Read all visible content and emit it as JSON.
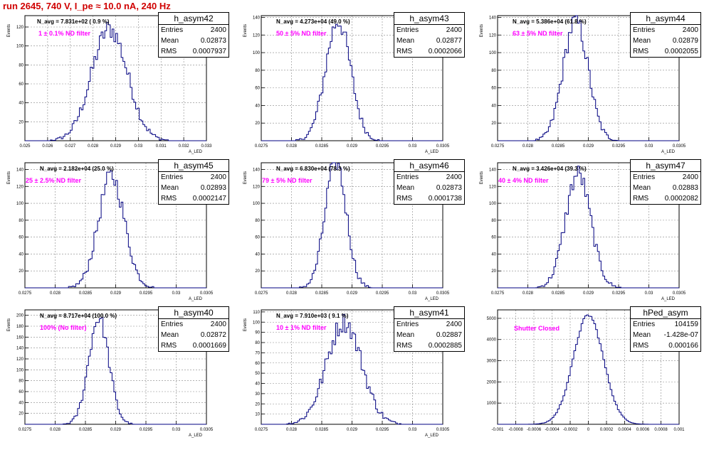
{
  "title": "run 2645,   740 V, I_pe ≈ 10.0 nA, 240 Hz",
  "colors": {
    "title": "#d00000",
    "hist_line": "#000080",
    "annotation": "#ff00ff",
    "grid": "#888888"
  },
  "stats_labels": {
    "entries": "Entries",
    "mean": "Mean",
    "rms": "RMS"
  },
  "chart_data": [
    {
      "type": "bar",
      "name": "h_asym42",
      "ylabel": "Events",
      "xlabel": "A_LED",
      "n_avg_text": "N_avg = 7.831e+02 ( 0.9 %)",
      "filter_text": "1 ± 0.1% ND filter",
      "stats": {
        "entries": "2400",
        "mean": "0.02873",
        "rms": "0.0007937"
      },
      "xlim": [
        0.025,
        0.033
      ],
      "ylim": [
        0,
        132
      ],
      "xticks": [
        "0.025",
        "0.026",
        "0.027",
        "0.028",
        "0.029",
        "0.03",
        "0.031",
        "0.032",
        "0.033"
      ],
      "xtick_values": [
        0.025,
        0.026,
        0.027,
        0.028,
        0.029,
        0.03,
        0.031,
        0.032,
        0.033
      ],
      "yticks": [
        20,
        40,
        60,
        80,
        100,
        120
      ],
      "mean": 0.02873,
      "sigma": 0.00079,
      "peak": 118
    },
    {
      "type": "bar",
      "name": "h_asym43",
      "ylabel": "Events",
      "xlabel": "A_LED",
      "n_avg_text": "N_avg = 4.273e+04 (49.0 %)",
      "filter_text": "50 ± 5% ND filter",
      "stats": {
        "entries": "2400",
        "mean": "0.02877",
        "rms": "0.0002066"
      },
      "xlim": [
        0.0275,
        0.0305
      ],
      "ylim": [
        0,
        142
      ],
      "xticks": [
        "0.0275",
        "0.028",
        "0.0285",
        "0.029",
        "0.0295",
        "0.03",
        "0.0305"
      ],
      "xtick_values": [
        0.0275,
        0.028,
        0.0285,
        0.029,
        0.0295,
        0.03,
        0.0305
      ],
      "yticks": [
        20,
        40,
        60,
        80,
        100,
        120,
        140
      ],
      "mean": 0.02877,
      "sigma": 0.000207,
      "peak": 136
    },
    {
      "type": "bar",
      "name": "h_asym44",
      "ylabel": "Events",
      "xlabel": "A_LED",
      "n_avg_text": "N_avg = 5.386e+04 (61.8 %)",
      "filter_text": "63 ± 5% ND filter",
      "stats": {
        "entries": "2400",
        "mean": "0.02879",
        "rms": "0.0002055"
      },
      "xlim": [
        0.0275,
        0.0305
      ],
      "ylim": [
        0,
        142
      ],
      "xticks": [
        "0.0275",
        "0.028",
        "0.0285",
        "0.029",
        "0.0295",
        "0.03",
        "0.0305"
      ],
      "xtick_values": [
        0.0275,
        0.028,
        0.0285,
        0.029,
        0.0295,
        0.03,
        0.0305
      ],
      "yticks": [
        20,
        40,
        60,
        80,
        100,
        120,
        140
      ],
      "mean": 0.02879,
      "sigma": 0.000206,
      "peak": 136
    },
    {
      "type": "bar",
      "name": "h_asym45",
      "ylabel": "Events",
      "xlabel": "A_LED",
      "n_avg_text": "N_avg = 2.182e+04 (25.0 %)",
      "filter_text": "25 ± 2.5% ND filter",
      "stats": {
        "entries": "2400",
        "mean": "0.02893",
        "rms": "0.0002147"
      },
      "xlim": [
        0.0275,
        0.0305
      ],
      "ylim": [
        0,
        148
      ],
      "xticks": [
        "0.0275",
        "0.028",
        "0.0285",
        "0.029",
        "0.0295",
        "0.03",
        "0.0305"
      ],
      "xtick_values": [
        0.0275,
        0.028,
        0.0285,
        0.029,
        0.0295,
        0.03,
        0.0305
      ],
      "yticks": [
        20,
        40,
        60,
        80,
        100,
        120,
        140
      ],
      "mean": 0.02893,
      "sigma": 0.000215,
      "peak": 132
    },
    {
      "type": "bar",
      "name": "h_asym46",
      "ylabel": "Events",
      "xlabel": "A_LED",
      "n_avg_text": "N_avg = 6.830e+04 (78.3 %)",
      "filter_text": "79 ± 5% ND filter",
      "stats": {
        "entries": "2400",
        "mean": "0.02873",
        "rms": "0.0001738"
      },
      "xlim": [
        0.0275,
        0.0305
      ],
      "ylim": [
        0,
        148
      ],
      "xticks": [
        "0.0275",
        "0.028",
        "0.0285",
        "0.029",
        "0.0295",
        "0.03",
        "0.0305"
      ],
      "xtick_values": [
        0.0275,
        0.028,
        0.0285,
        0.029,
        0.0295,
        0.03,
        0.0305
      ],
      "yticks": [
        20,
        40,
        60,
        80,
        100,
        120,
        140
      ],
      "mean": 0.02873,
      "sigma": 0.000174,
      "peak": 150
    },
    {
      "type": "bar",
      "name": "h_asym47",
      "ylabel": "Events",
      "xlabel": "A_LED",
      "n_avg_text": "N_avg = 3.426e+04 (39.3 %)",
      "filter_text": "40 ± 4% ND filter",
      "stats": {
        "entries": "2400",
        "mean": "0.02883",
        "rms": "0.0002082"
      },
      "xlim": [
        0.0275,
        0.0305
      ],
      "ylim": [
        0,
        148
      ],
      "xticks": [
        "0.0275",
        "0.028",
        "0.0285",
        "0.029",
        "0.0295",
        "0.03",
        "0.0305"
      ],
      "xtick_values": [
        0.0275,
        0.028,
        0.0285,
        0.029,
        0.0295,
        0.03,
        0.0305
      ],
      "yticks": [
        20,
        40,
        60,
        80,
        100,
        120,
        140
      ],
      "mean": 0.02883,
      "sigma": 0.000208,
      "peak": 135
    },
    {
      "type": "bar",
      "name": "h_asym40",
      "ylabel": "Events",
      "xlabel": "A_LED",
      "n_avg_text": "N_avg = 8.717e+04 (100.0 %)",
      "filter_text": "100% (No filter)",
      "stats": {
        "entries": "2400",
        "mean": "0.02872",
        "rms": "0.0001669"
      },
      "xlim": [
        0.0275,
        0.0305
      ],
      "ylim": [
        0,
        210
      ],
      "xticks": [
        "0.0275",
        "0.028",
        "0.0285",
        "0.029",
        "0.0295",
        "0.03",
        "0.0305"
      ],
      "xtick_values": [
        0.0275,
        0.028,
        0.0285,
        0.029,
        0.0295,
        0.03,
        0.0305
      ],
      "yticks": [
        20,
        40,
        60,
        80,
        100,
        120,
        140,
        160,
        180,
        200
      ],
      "mean": 0.02872,
      "sigma": 0.000167,
      "peak": 195
    },
    {
      "type": "bar",
      "name": "h_asym41",
      "ylabel": "Events",
      "xlabel": "A_LED",
      "n_avg_text": "N_avg = 7.910e+03 ( 9.1 %)",
      "filter_text": "10 ± 1% ND filter",
      "stats": {
        "entries": "2400",
        "mean": "0.02887",
        "rms": "0.0002885"
      },
      "xlim": [
        0.0275,
        0.0305
      ],
      "ylim": [
        0,
        112
      ],
      "xticks": [
        "0.0275",
        "0.028",
        "0.0285",
        "0.029",
        "0.0295",
        "0.03",
        "0.0305"
      ],
      "xtick_values": [
        0.0275,
        0.028,
        0.0285,
        0.029,
        0.0295,
        0.03,
        0.0305
      ],
      "yticks": [
        10,
        20,
        30,
        40,
        50,
        60,
        70,
        80,
        90,
        100,
        110
      ],
      "mean": 0.02887,
      "sigma": 0.000289,
      "peak": 100
    },
    {
      "type": "bar",
      "name": "hPed_asym",
      "ylabel": "",
      "xlabel": "",
      "n_avg_text": "",
      "filter_text": "Shutter Closed",
      "stats": {
        "entries": "104159",
        "mean": "-1.428e-07",
        "rms": "0.000166"
      },
      "xlim": [
        -0.001,
        0.001
      ],
      "ylim": [
        0,
        5400
      ],
      "xticks": [
        "-0.001",
        "-0.0008",
        "-0.0006",
        "-0.0004",
        "-0.0002",
        "0",
        "0.0002",
        "0.0004",
        "0.0006",
        "0.0008",
        "0.001"
      ],
      "xtick_values": [
        -0.001,
        -0.0008,
        -0.0006,
        -0.0004,
        -0.0002,
        0,
        0.0002,
        0.0004,
        0.0006,
        0.0008,
        0.001
      ],
      "yticks": [
        1000,
        2000,
        3000,
        4000,
        5000
      ],
      "mean": 0.0,
      "sigma": 0.000166,
      "peak": 5150
    }
  ]
}
